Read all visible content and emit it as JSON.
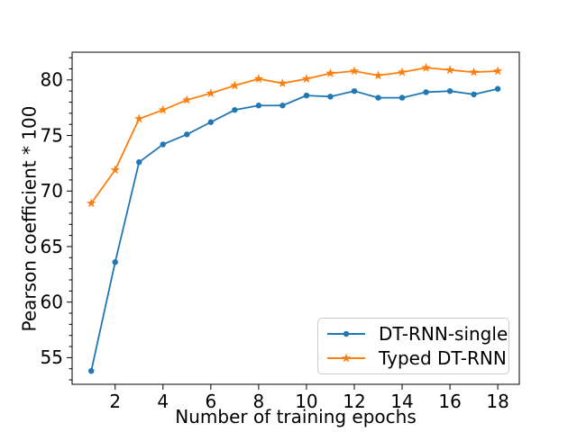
{
  "figure": {
    "background": "#ffffff",
    "text_color": "#000000",
    "frame_color": "#000000"
  },
  "chart_data": {
    "type": "line",
    "title": "",
    "xlabel": "Number of training epochs",
    "ylabel": "Pearson coefficient * 100",
    "x": [
      1,
      2,
      3,
      4,
      5,
      6,
      7,
      8,
      9,
      10,
      11,
      12,
      13,
      14,
      15,
      16,
      17,
      18
    ],
    "series": [
      {
        "name": "DT-RNN-single",
        "color": "#1f77b4",
        "marker": "circle",
        "values": [
          53.8,
          63.6,
          72.6,
          74.2,
          75.1,
          76.2,
          77.3,
          77.7,
          77.7,
          78.6,
          78.5,
          79.0,
          78.4,
          78.4,
          78.9,
          79.0,
          78.7,
          79.2
        ]
      },
      {
        "name": "Typed DT-RNN",
        "color": "#ff7f0e",
        "marker": "star",
        "values": [
          68.9,
          71.9,
          76.5,
          77.3,
          78.2,
          78.8,
          79.5,
          80.1,
          79.7,
          80.1,
          80.6,
          80.8,
          80.4,
          80.7,
          81.1,
          80.9,
          80.7,
          80.8
        ]
      }
    ],
    "xlim": [
      0.2,
      18.9
    ],
    "ylim": [
      52.6,
      82.5
    ],
    "x_ticks": [
      2,
      4,
      6,
      8,
      10,
      12,
      14,
      16,
      18
    ],
    "y_ticks": [
      55,
      60,
      65,
      70,
      75,
      80
    ],
    "y_minor_step": 1,
    "grid": false,
    "legend_position": "lower right"
  }
}
